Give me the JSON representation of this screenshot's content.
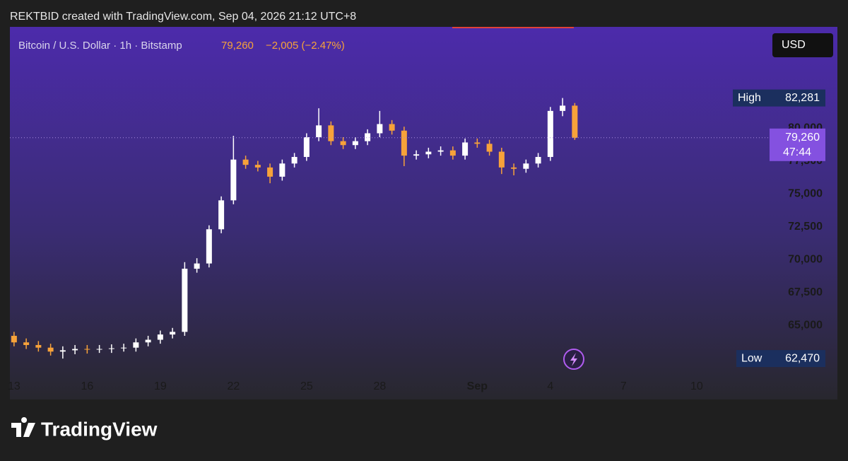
{
  "chart_data": {
    "type": "candlestick",
    "credit": "REKTBID created with TradingView.com, Sep 04, 2026 21:12 UTC+8",
    "symbol": "Bitcoin / U.S. Dollar · 1h · Bitstamp",
    "last_label": "79,260",
    "change_label": "−2,005 (−2.47%)",
    "currency": "USD",
    "high_tag": {
      "label": "High",
      "value": "82,281"
    },
    "low_tag": {
      "label": "Low",
      "value": "62,470"
    },
    "price_tag": {
      "value": "79,260",
      "countdown": "47:44"
    },
    "brand": "TradingView",
    "up_color": "#ffffff",
    "down_color": "#f7a23a",
    "x": [
      0,
      0.5,
      1,
      1.5,
      2,
      2.5,
      3,
      3.5,
      4,
      4.5,
      5,
      5.5,
      6,
      6.5,
      7,
      7.5,
      8,
      8.5,
      9,
      9.5,
      10,
      10.5,
      11,
      11.5,
      12,
      12.5,
      13,
      13.5,
      14,
      14.5,
      15,
      15.5,
      16,
      16.5,
      17,
      17.5,
      18,
      18.5,
      19,
      19.5,
      20,
      20.5,
      21,
      21.5,
      22,
      22.5,
      23
    ],
    "open": [
      64200,
      63700,
      63500,
      63300,
      63000,
      63100,
      63200,
      63150,
      63200,
      63250,
      63300,
      63700,
      63900,
      64300,
      64500,
      69300,
      69700,
      72300,
      74500,
      77600,
      77200,
      77000,
      76300,
      77300,
      77800,
      79300,
      80200,
      79000,
      78700,
      79000,
      79600,
      80300,
      79800,
      77900,
      78000,
      78200,
      78300,
      77900,
      78900,
      78800,
      78200,
      77000,
      76900,
      77300,
      77800,
      81300,
      81700
    ],
    "high": [
      64500,
      64000,
      63800,
      63600,
      63400,
      63500,
      63500,
      63500,
      63550,
      63600,
      64000,
      64200,
      64600,
      64800,
      69800,
      70100,
      72600,
      74800,
      79400,
      77900,
      77500,
      77300,
      77600,
      78100,
      79600,
      81500,
      80500,
      79300,
      79300,
      79900,
      81300,
      80600,
      80100,
      78300,
      78500,
      78600,
      78600,
      79200,
      79200,
      79100,
      78500,
      77300,
      77600,
      78100,
      81600,
      82281,
      81900
    ],
    "low": [
      63400,
      63200,
      63000,
      62700,
      62470,
      62800,
      62850,
      62900,
      62900,
      63000,
      63000,
      63400,
      63600,
      64000,
      64200,
      69000,
      69400,
      72000,
      74200,
      76900,
      76700,
      75800,
      76000,
      77000,
      77500,
      79000,
      78700,
      78400,
      78400,
      78700,
      79300,
      79500,
      77100,
      77600,
      77700,
      77900,
      77600,
      77600,
      78500,
      77900,
      76500,
      76400,
      76600,
      77000,
      77500,
      80900,
      79100
    ],
    "close": [
      63700,
      63500,
      63300,
      63000,
      63100,
      63200,
      63150,
      63200,
      63250,
      63300,
      63700,
      63900,
      64300,
      64500,
      69300,
      69700,
      72300,
      74500,
      77600,
      77200,
      77000,
      76300,
      77300,
      77800,
      79300,
      80200,
      79000,
      78700,
      79000,
      79600,
      80300,
      79800,
      77900,
      78000,
      78200,
      78300,
      77900,
      78900,
      78800,
      78200,
      77000,
      76900,
      77300,
      77800,
      81300,
      81700,
      79260
    ],
    "xlim": [
      -0.17,
      29.28
    ],
    "xticks": [
      {
        "value": 0,
        "label": "13"
      },
      {
        "value": 3,
        "label": "16"
      },
      {
        "value": 6,
        "label": "19"
      },
      {
        "value": 9,
        "label": "22"
      },
      {
        "value": 12,
        "label": "25"
      },
      {
        "value": 15,
        "label": "28"
      },
      {
        "value": 19,
        "label": "Sep"
      },
      {
        "value": 22,
        "label": "4"
      },
      {
        "value": 25,
        "label": "7"
      },
      {
        "value": 28,
        "label": "10"
      }
    ],
    "ylim": [
      61240,
      87690
    ],
    "yticks": [
      {
        "value": 65000,
        "label": "65,000"
      },
      {
        "value": 67500,
        "label": "67,500"
      },
      {
        "value": 70000,
        "label": "70,000"
      },
      {
        "value": 72500,
        "label": "72,500"
      },
      {
        "value": 75000,
        "label": "75,000"
      },
      {
        "value": 77500,
        "label": "77,500"
      },
      {
        "value": 80000,
        "label": "80,000"
      }
    ]
  }
}
